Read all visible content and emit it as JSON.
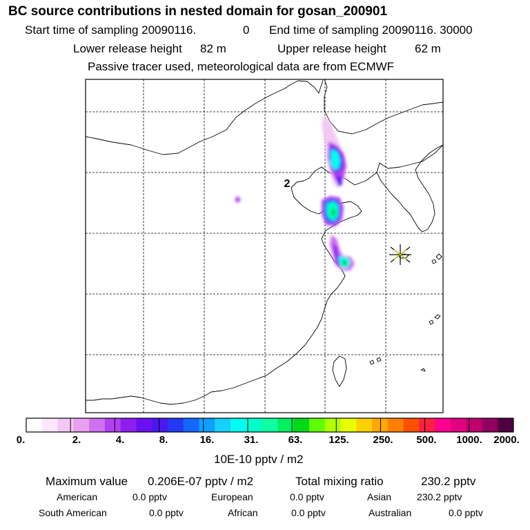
{
  "header": {
    "title": "BC  source contributions in nested domain for gosan_200901",
    "start_label": "Start time of sampling 20090116.",
    "start_sec": "0",
    "end_label": "End time of sampling 20090116. 30000",
    "lower_label": "Lower release height",
    "lower_value": "82 m",
    "upper_label": "Upper release height",
    "upper_value": "62 m",
    "info": "Passive tracer used, meteorological data are from ECMWF"
  },
  "map": {
    "marker_label": "2",
    "receptor": "star-marker"
  },
  "colorbar": {
    "colors": [
      "#ffffff",
      "#fbe6fb",
      "#f3c8f3",
      "#e8a0f0",
      "#d070f0",
      "#b040f0",
      "#8e1ef0",
      "#6a10f0",
      "#4a18f0",
      "#2438f4",
      "#1468ff",
      "#0ea0ff",
      "#18d0ff",
      "#00fff0",
      "#00ffc8",
      "#10ffa0",
      "#00f060",
      "#00d818",
      "#60ff00",
      "#b0ff00",
      "#e8ff00",
      "#ffd000",
      "#ffa800",
      "#ff8000",
      "#ff5000",
      "#ff2040",
      "#ff0090",
      "#e00080",
      "#c00070",
      "#900060",
      "#500040"
    ],
    "ticks": [
      "0.",
      "2.",
      "4.",
      "8.",
      "16.",
      "31.",
      "63.",
      "125.",
      "250.",
      "500.",
      "1000.",
      "2000."
    ],
    "unit": "10E-10 pptv / m2"
  },
  "stats": {
    "max_label": "Maximum value",
    "max_value": "0.206E-07 pptv / m2",
    "total_label": "Total mixing ratio",
    "total_value": "230.2 pptv",
    "regions": [
      {
        "name": "American",
        "value": "0.0 pptv"
      },
      {
        "name": "European",
        "value": "0.0 pptv"
      },
      {
        "name": "Asian",
        "value": "230.2 pptv"
      },
      {
        "name": "South American",
        "value": "0.0 pptv"
      },
      {
        "name": "African",
        "value": "0.0 pptv"
      },
      {
        "name": "Australian",
        "value": "0.0 pptv"
      }
    ]
  }
}
